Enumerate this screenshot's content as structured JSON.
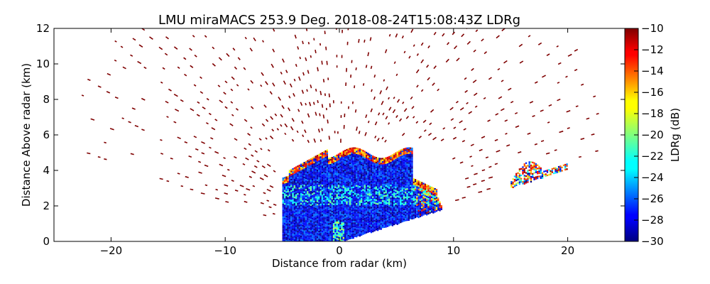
{
  "chart_data": {
    "type": "heatmap",
    "title": "LMU miraMACS 253.9 Deg. 2018-08-24T15:08:43Z  LDRg",
    "xlabel": "Distance from radar (km)",
    "ylabel": "Distance Above radar  (km)",
    "xlim": [
      -25,
      25
    ],
    "ylim": [
      0,
      12
    ],
    "xticks": [
      -20,
      -10,
      0,
      10,
      20
    ],
    "yticks": [
      0,
      2,
      4,
      6,
      8,
      10,
      12
    ],
    "xtick_labels": [
      "−20",
      "−10",
      "0",
      "10",
      "20"
    ],
    "ytick_labels": [
      "0",
      "2",
      "4",
      "6",
      "8",
      "10",
      "12"
    ],
    "colorbar": {
      "label": "LDRg (dB)",
      "range": [
        -30,
        -10
      ],
      "ticks": [
        -10,
        -12,
        -14,
        -16,
        -18,
        -20,
        -22,
        -24,
        -26,
        -28,
        -30
      ],
      "tick_labels": [
        "−10",
        "−12",
        "−14",
        "−16",
        "−18",
        "−20",
        "−22",
        "−24",
        "−26",
        "−28",
        "−30"
      ],
      "colormap": "jet"
    },
    "scan_elevation_range_deg": [
      11.5,
      168.5
    ],
    "main_echo": {
      "description_values_db": [
        -30,
        -26
      ],
      "x_range_km": [
        -5,
        9.5
      ],
      "top_height_km": 5.4,
      "edge_value_db": -10
    },
    "secondary_echo": {
      "x_range_km": [
        15,
        20
      ],
      "height_range_km": [
        2.6,
        4.4
      ]
    },
    "clutter_value_db": -10
  },
  "colors": {
    "clutter": "#7f0000",
    "jet_low": "#00007f",
    "jet_high": "#7f0000"
  }
}
